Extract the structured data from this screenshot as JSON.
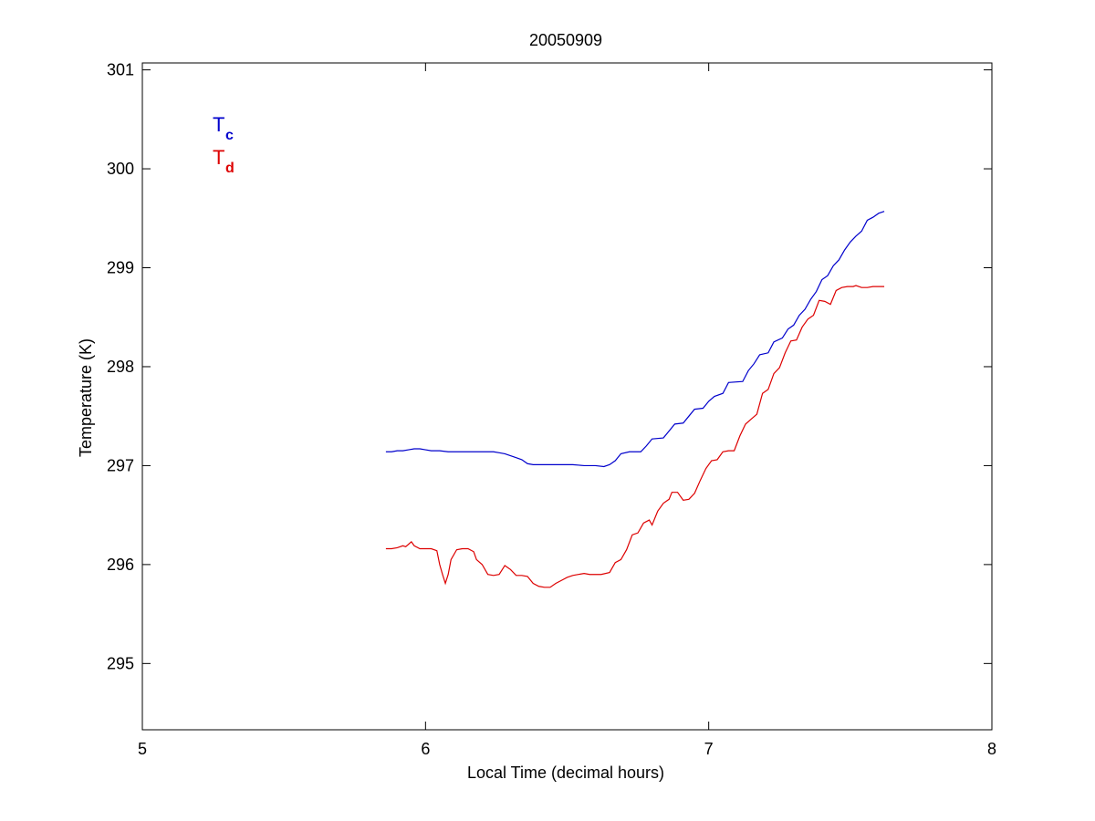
{
  "chart_data": {
    "type": "line",
    "title": "20050909",
    "xlabel": "Local Time (decimal hours)",
    "ylabel": "Temperature (K)",
    "xlim": [
      5,
      8
    ],
    "ylim": [
      294.33,
      301.07
    ],
    "xticks": [
      5,
      6,
      7,
      8
    ],
    "yticks": [
      295,
      296,
      297,
      298,
      299,
      300,
      301
    ],
    "grid": false,
    "legend_placement": "top-left",
    "series": [
      {
        "name": "T",
        "subscript": "c",
        "color": "#0000cc",
        "points": [
          [
            5.86,
            297.14
          ],
          [
            5.88,
            297.14
          ],
          [
            5.9,
            297.15
          ],
          [
            5.92,
            297.15
          ],
          [
            5.94,
            297.16
          ],
          [
            5.96,
            297.17
          ],
          [
            5.98,
            297.17
          ],
          [
            6.0,
            297.16
          ],
          [
            6.02,
            297.15
          ],
          [
            6.05,
            297.15
          ],
          [
            6.08,
            297.14
          ],
          [
            6.12,
            297.14
          ],
          [
            6.16,
            297.14
          ],
          [
            6.2,
            297.14
          ],
          [
            6.24,
            297.14
          ],
          [
            6.26,
            297.13
          ],
          [
            6.28,
            297.12
          ],
          [
            6.3,
            297.1
          ],
          [
            6.32,
            297.08
          ],
          [
            6.34,
            297.06
          ],
          [
            6.36,
            297.02
          ],
          [
            6.38,
            297.01
          ],
          [
            6.4,
            297.01
          ],
          [
            6.44,
            297.01
          ],
          [
            6.48,
            297.01
          ],
          [
            6.52,
            297.01
          ],
          [
            6.56,
            297.0
          ],
          [
            6.6,
            297.0
          ],
          [
            6.63,
            296.99
          ],
          [
            6.65,
            297.01
          ],
          [
            6.67,
            297.05
          ],
          [
            6.69,
            297.12
          ],
          [
            6.72,
            297.14
          ],
          [
            6.76,
            297.14
          ],
          [
            6.78,
            297.2
          ],
          [
            6.8,
            297.27
          ],
          [
            6.84,
            297.28
          ],
          [
            6.86,
            297.35
          ],
          [
            6.88,
            297.42
          ],
          [
            6.91,
            297.43
          ],
          [
            6.93,
            297.5
          ],
          [
            6.95,
            297.57
          ],
          [
            6.98,
            297.58
          ],
          [
            7.0,
            297.65
          ],
          [
            7.02,
            297.7
          ],
          [
            7.05,
            297.73
          ],
          [
            7.07,
            297.84
          ],
          [
            7.12,
            297.85
          ],
          [
            7.14,
            297.96
          ],
          [
            7.16,
            298.03
          ],
          [
            7.18,
            298.12
          ],
          [
            7.21,
            298.14
          ],
          [
            7.23,
            298.25
          ],
          [
            7.26,
            298.29
          ],
          [
            7.28,
            298.38
          ],
          [
            7.3,
            298.42
          ],
          [
            7.32,
            298.52
          ],
          [
            7.34,
            298.58
          ],
          [
            7.36,
            298.68
          ],
          [
            7.38,
            298.76
          ],
          [
            7.4,
            298.88
          ],
          [
            7.42,
            298.92
          ],
          [
            7.44,
            299.02
          ],
          [
            7.46,
            299.08
          ],
          [
            7.48,
            299.18
          ],
          [
            7.5,
            299.26
          ],
          [
            7.52,
            299.32
          ],
          [
            7.54,
            299.37
          ],
          [
            7.56,
            299.48
          ],
          [
            7.58,
            299.51
          ],
          [
            7.6,
            299.55
          ],
          [
            7.62,
            299.57
          ]
        ]
      },
      {
        "name": "T",
        "subscript": "d",
        "color": "#dd0000",
        "points": [
          [
            5.86,
            296.16
          ],
          [
            5.88,
            296.16
          ],
          [
            5.9,
            296.17
          ],
          [
            5.92,
            296.19
          ],
          [
            5.93,
            296.18
          ],
          [
            5.95,
            296.23
          ],
          [
            5.96,
            296.19
          ],
          [
            5.98,
            296.16
          ],
          [
            6.0,
            296.16
          ],
          [
            6.02,
            296.16
          ],
          [
            6.04,
            296.14
          ],
          [
            6.05,
            296.0
          ],
          [
            6.06,
            295.9
          ],
          [
            6.07,
            295.81
          ],
          [
            6.08,
            295.9
          ],
          [
            6.09,
            296.05
          ],
          [
            6.11,
            296.15
          ],
          [
            6.13,
            296.16
          ],
          [
            6.15,
            296.16
          ],
          [
            6.17,
            296.13
          ],
          [
            6.18,
            296.05
          ],
          [
            6.2,
            296.0
          ],
          [
            6.22,
            295.9
          ],
          [
            6.24,
            295.89
          ],
          [
            6.26,
            295.9
          ],
          [
            6.28,
            295.99
          ],
          [
            6.3,
            295.95
          ],
          [
            6.32,
            295.89
          ],
          [
            6.34,
            295.89
          ],
          [
            6.36,
            295.88
          ],
          [
            6.38,
            295.81
          ],
          [
            6.4,
            295.78
          ],
          [
            6.42,
            295.77
          ],
          [
            6.44,
            295.77
          ],
          [
            6.46,
            295.81
          ],
          [
            6.48,
            295.84
          ],
          [
            6.5,
            295.87
          ],
          [
            6.52,
            295.89
          ],
          [
            6.54,
            295.9
          ],
          [
            6.56,
            295.91
          ],
          [
            6.58,
            295.9
          ],
          [
            6.62,
            295.9
          ],
          [
            6.65,
            295.92
          ],
          [
            6.67,
            296.02
          ],
          [
            6.69,
            296.05
          ],
          [
            6.71,
            296.15
          ],
          [
            6.73,
            296.3
          ],
          [
            6.75,
            296.32
          ],
          [
            6.77,
            296.42
          ],
          [
            6.79,
            296.45
          ],
          [
            6.8,
            296.4
          ],
          [
            6.82,
            296.54
          ],
          [
            6.84,
            296.62
          ],
          [
            6.86,
            296.66
          ],
          [
            6.87,
            296.73
          ],
          [
            6.89,
            296.73
          ],
          [
            6.91,
            296.65
          ],
          [
            6.93,
            296.66
          ],
          [
            6.95,
            296.72
          ],
          [
            6.97,
            296.85
          ],
          [
            6.99,
            296.97
          ],
          [
            7.01,
            297.05
          ],
          [
            7.03,
            297.06
          ],
          [
            7.05,
            297.14
          ],
          [
            7.07,
            297.15
          ],
          [
            7.09,
            297.15
          ],
          [
            7.11,
            297.3
          ],
          [
            7.13,
            297.42
          ],
          [
            7.15,
            297.47
          ],
          [
            7.17,
            297.52
          ],
          [
            7.19,
            297.73
          ],
          [
            7.21,
            297.77
          ],
          [
            7.23,
            297.93
          ],
          [
            7.25,
            297.99
          ],
          [
            7.27,
            298.14
          ],
          [
            7.29,
            298.26
          ],
          [
            7.31,
            298.27
          ],
          [
            7.33,
            298.4
          ],
          [
            7.35,
            298.48
          ],
          [
            7.37,
            298.52
          ],
          [
            7.39,
            298.67
          ],
          [
            7.41,
            298.66
          ],
          [
            7.43,
            298.63
          ],
          [
            7.45,
            298.77
          ],
          [
            7.47,
            298.8
          ],
          [
            7.49,
            298.81
          ],
          [
            7.51,
            298.81
          ],
          [
            7.52,
            298.82
          ],
          [
            7.54,
            298.8
          ],
          [
            7.56,
            298.8
          ],
          [
            7.58,
            298.81
          ],
          [
            7.6,
            298.81
          ],
          [
            7.62,
            298.81
          ]
        ]
      }
    ]
  }
}
